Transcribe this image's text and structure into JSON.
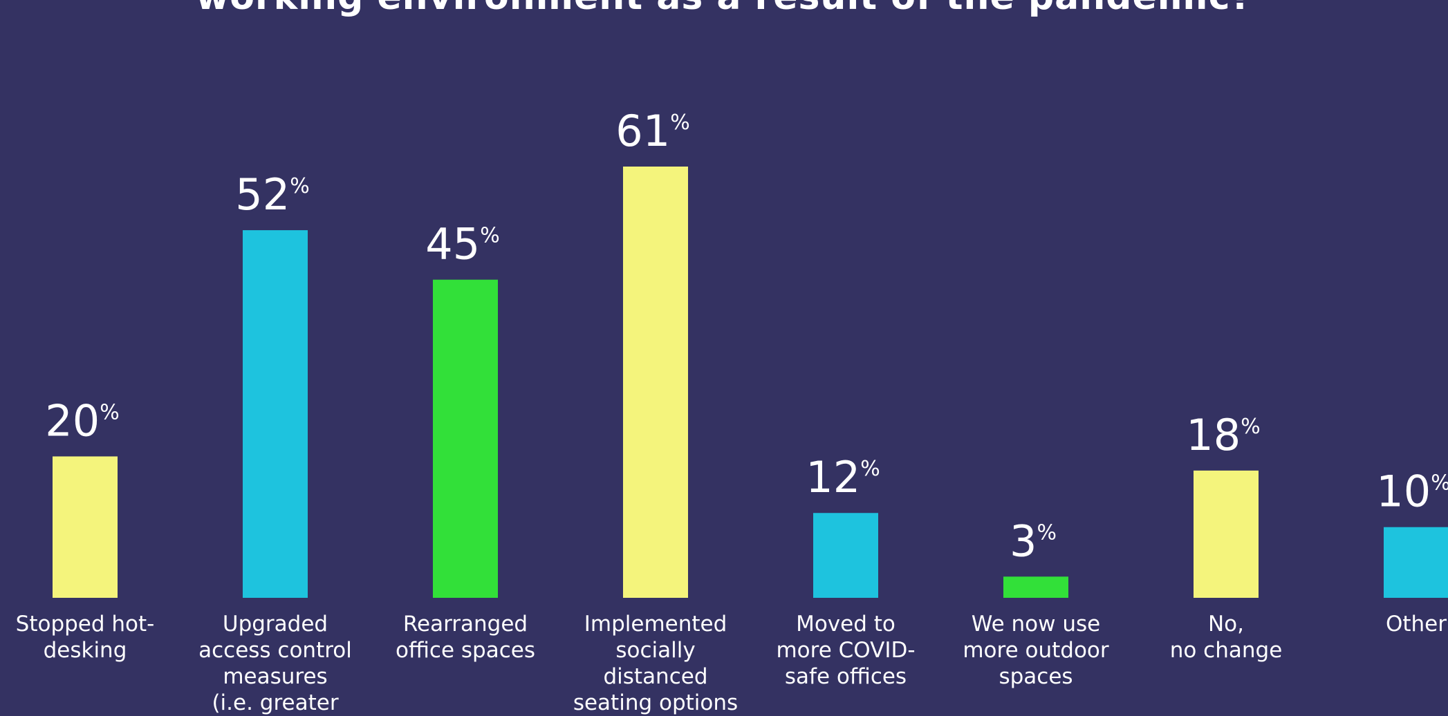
{
  "title": "working environment as a result of the pandemic?",
  "chart_data": {
    "type": "bar",
    "categories": [
      [
        "Stopped hot-",
        "desking"
      ],
      [
        "Upgraded",
        "access control",
        "measures",
        "(i.e. greater"
      ],
      [
        "Rearranged",
        "office spaces"
      ],
      [
        "Implemented",
        "socially",
        "distanced",
        "seating options"
      ],
      [
        "Moved to",
        "more COVID-",
        "safe offices"
      ],
      [
        "We now use",
        "more outdoor",
        "spaces"
      ],
      [
        "No,",
        "no change"
      ],
      [
        "Other"
      ]
    ],
    "values": [
      20,
      52,
      45,
      61,
      12,
      3,
      18,
      10
    ],
    "value_suffix": "%",
    "colors": [
      "#f4f47c",
      "#1ec3de",
      "#32e039",
      "#f4f47c",
      "#1ec3de",
      "#32e039",
      "#f4f47c",
      "#1ec3de"
    ],
    "ylim": [
      0,
      61
    ]
  }
}
